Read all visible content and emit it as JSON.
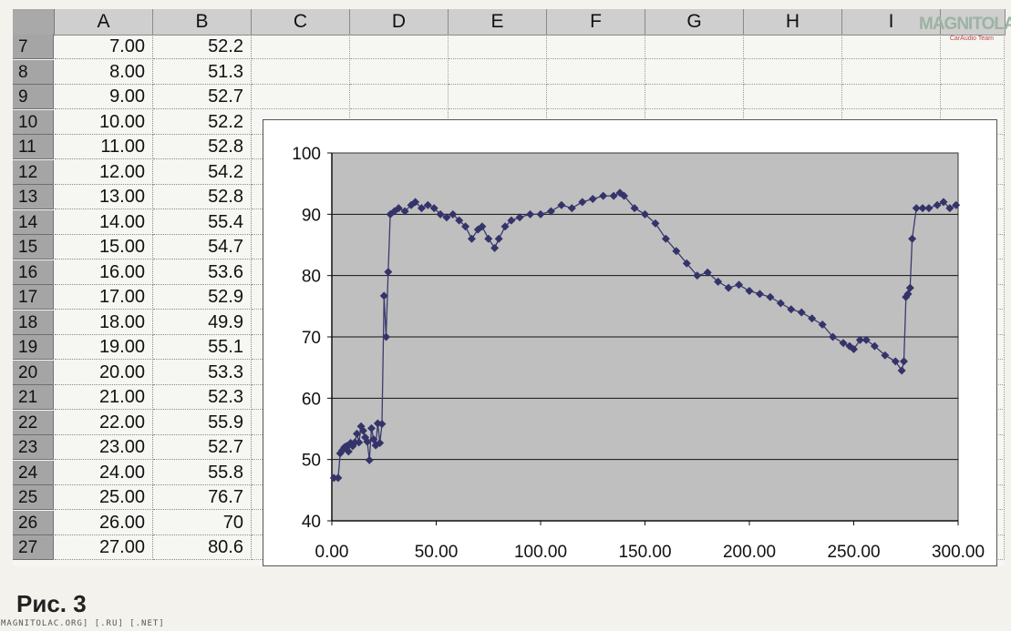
{
  "sheet": {
    "columns": [
      "A",
      "B",
      "C",
      "D",
      "E",
      "F",
      "G",
      "H",
      "I",
      ""
    ],
    "rows": [
      {
        "num": "7",
        "a": "7.00",
        "b": "52.2"
      },
      {
        "num": "8",
        "a": "8.00",
        "b": "51.3"
      },
      {
        "num": "9",
        "a": "9.00",
        "b": "52.7"
      },
      {
        "num": "10",
        "a": "10.00",
        "b": "52.2"
      },
      {
        "num": "11",
        "a": "11.00",
        "b": "52.8"
      },
      {
        "num": "12",
        "a": "12.00",
        "b": "54.2"
      },
      {
        "num": "13",
        "a": "13.00",
        "b": "52.8"
      },
      {
        "num": "14",
        "a": "14.00",
        "b": "55.4"
      },
      {
        "num": "15",
        "a": "15.00",
        "b": "54.7"
      },
      {
        "num": "16",
        "a": "16.00",
        "b": "53.6"
      },
      {
        "num": "17",
        "a": "17.00",
        "b": "52.9"
      },
      {
        "num": "18",
        "a": "18.00",
        "b": "49.9"
      },
      {
        "num": "19",
        "a": "19.00",
        "b": "55.1"
      },
      {
        "num": "20",
        "a": "20.00",
        "b": "53.3"
      },
      {
        "num": "21",
        "a": "21.00",
        "b": "52.3"
      },
      {
        "num": "22",
        "a": "22.00",
        "b": "55.9"
      },
      {
        "num": "23",
        "a": "23.00",
        "b": "52.7"
      },
      {
        "num": "24",
        "a": "24.00",
        "b": "55.8"
      },
      {
        "num": "25",
        "a": "25.00",
        "b": "76.7"
      },
      {
        "num": "26",
        "a": "26.00",
        "b": "70"
      },
      {
        "num": "27",
        "a": "27.00",
        "b": "80.6"
      }
    ]
  },
  "chart_data": {
    "type": "line",
    "title": "",
    "xlabel": "",
    "ylabel": "",
    "xlim": [
      0,
      300
    ],
    "ylim": [
      40,
      100
    ],
    "xticks": [
      "0.00",
      "50.00",
      "100.00",
      "150.00",
      "200.00",
      "250.00",
      "300.00"
    ],
    "yticks": [
      "40",
      "50",
      "60",
      "70",
      "80",
      "90",
      "100"
    ],
    "grid": "horizontal",
    "legend": "none",
    "marker": "diamond",
    "colors": {
      "line": "#3b3a6e",
      "marker": "#34336a",
      "plot_bg": "#bfbfbf",
      "grid": "#111111"
    },
    "series": [
      {
        "x": [
          1,
          3,
          4,
          5,
          6,
          7,
          8,
          9,
          10,
          11,
          12,
          13,
          14,
          15,
          16,
          17,
          18,
          19,
          20,
          21,
          22,
          23,
          24,
          25,
          26,
          27,
          28,
          30,
          32,
          35,
          38,
          40,
          43,
          46,
          49,
          52,
          55,
          58,
          61,
          64,
          67,
          70,
          72,
          75,
          78,
          80,
          83,
          86,
          90,
          95,
          100,
          105,
          110,
          115,
          120,
          125,
          130,
          135,
          138,
          140,
          145,
          150,
          155,
          160,
          165,
          170,
          175,
          180,
          185,
          190,
          195,
          200,
          205,
          210,
          215,
          220,
          225,
          230,
          235,
          240,
          245,
          248,
          250,
          253,
          256,
          260,
          265,
          270,
          273,
          274,
          275,
          276,
          277,
          278,
          280,
          283,
          286,
          290,
          293,
          296,
          299
        ],
        "y": [
          47,
          47,
          51,
          51.5,
          52,
          52.2,
          51.3,
          52.7,
          52.2,
          52.8,
          54.2,
          52.8,
          55.4,
          54.7,
          53.6,
          52.9,
          49.9,
          55.1,
          53.3,
          52.3,
          55.9,
          52.7,
          55.8,
          76.7,
          70,
          80.6,
          90,
          90.5,
          91,
          90.5,
          91.5,
          92,
          91,
          91.5,
          91,
          90,
          89.5,
          90,
          89,
          88,
          86,
          87.5,
          88,
          86,
          84.5,
          86,
          88,
          89,
          89.5,
          90,
          90,
          90.5,
          91.5,
          91,
          92,
          92.5,
          93,
          93,
          93.5,
          93,
          91,
          90,
          88.5,
          86,
          84,
          82,
          80,
          80.5,
          79,
          78,
          78.5,
          77.5,
          77,
          76.5,
          75.5,
          74.5,
          74,
          73,
          72,
          70,
          69,
          68.5,
          68,
          69.5,
          69.5,
          68.5,
          67,
          66,
          64.5,
          66,
          76.5,
          77,
          78,
          86,
          91,
          91,
          91,
          91.5,
          92,
          91,
          91.5
        ]
      }
    ]
  },
  "watermark": {
    "main": "MAGNITOLA",
    "sub": "CarAudio Team"
  },
  "caption": "Рис. 3",
  "footer": "MAGNITOLAC.ORG] [.RU] [.NET]"
}
